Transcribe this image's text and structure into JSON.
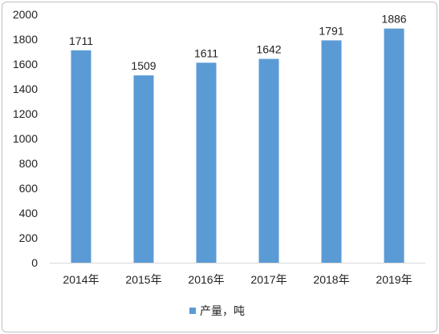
{
  "chart_data": {
    "type": "bar",
    "categories": [
      "2014年",
      "2015年",
      "2016年",
      "2017年",
      "2018年",
      "2019年"
    ],
    "series": [
      {
        "name": "产量，吨",
        "values": [
          1711,
          1509,
          1611,
          1642,
          1791,
          1886
        ],
        "color": "#5b9bd5"
      }
    ],
    "ylim": [
      0,
      2000
    ],
    "yticks": [
      0,
      200,
      400,
      600,
      800,
      1000,
      1200,
      1400,
      1600,
      1800,
      2000
    ],
    "data_labels": true,
    "grid": false,
    "legend_position": "bottom"
  }
}
